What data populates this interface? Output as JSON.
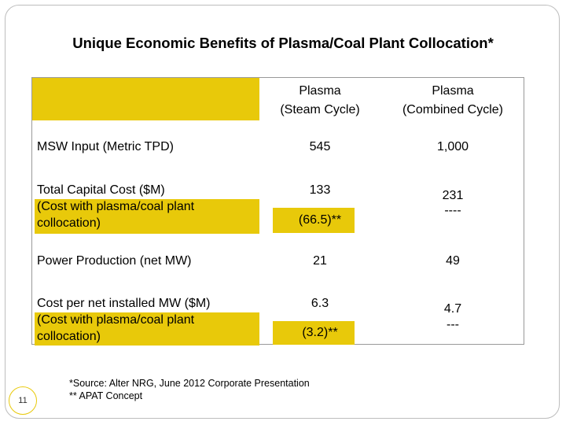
{
  "slide": {
    "title": "Unique Economic Benefits of Plasma/Coal Plant Collocation*",
    "page_number": "11"
  },
  "table": {
    "headers": {
      "col1_line1": "Plasma",
      "col1_line2": "(Steam Cycle)",
      "col2_line1": "Plasma",
      "col2_line2": "(Combined Cycle)"
    },
    "rows": {
      "msw": {
        "label": "MSW Input (Metric TPD)",
        "steam": "545",
        "combined": "1,000"
      },
      "capital": {
        "label_line1": "Total Capital Cost ($M)",
        "label_line2": "(Cost with plasma/coal plant",
        "label_line3": "collocation)",
        "steam": "133",
        "steam_alt": "(66.5)**",
        "combined": "231",
        "combined_alt": "----"
      },
      "power": {
        "label": "Power Production (net MW)",
        "steam": "21",
        "combined": "49"
      },
      "cost_per_mw": {
        "label_line1": "Cost per net installed MW ($M)",
        "label_line2": "(Cost with plasma/coal plant",
        "label_line3": "collocation)",
        "steam": "6.3",
        "steam_alt": "(3.2)**",
        "combined": "4.7",
        "combined_alt": "---"
      }
    }
  },
  "footnotes": {
    "source": "*Source: Alter NRG, June 2012 Corporate Presentation",
    "apat": "** APAT Concept"
  },
  "colors": {
    "highlight": "#e8c90a",
    "border": "#999999"
  }
}
